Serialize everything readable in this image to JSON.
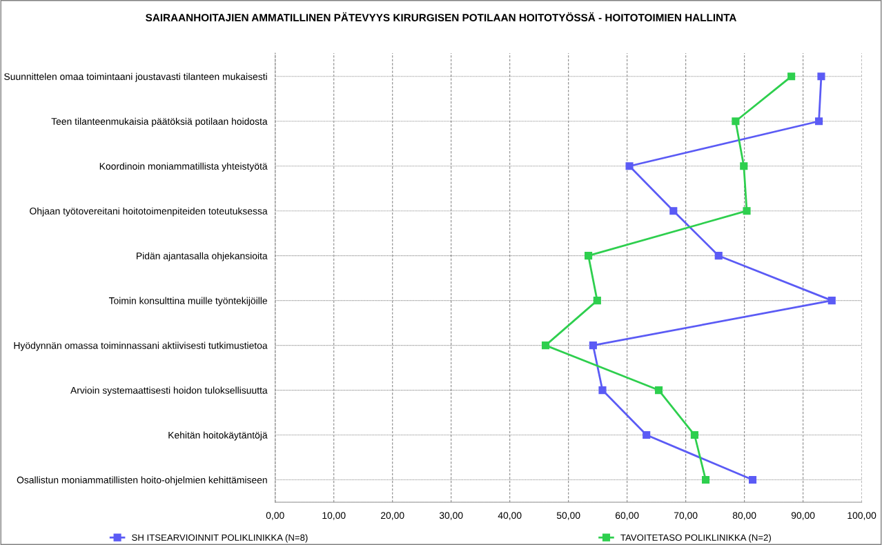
{
  "chart_data": {
    "type": "line",
    "orientation": "horizontal",
    "title": "SAIRAANHOITAJIEN AMMATILLINEN PÄTEVYYS KIRURGISEN POTILAAN HOITOTYÖSSÄ - HOITOTOIMIEN HALLINTA",
    "categories": [
      "Suunnittelen omaa toimintaani joustavasti tilanteen mukaisesti",
      "Teen tilanteenmukaisia päätöksiä potilaan hoidosta",
      "Koordinoin moniammatillista yhteistyötä",
      "Ohjaan työtovereitani hoitotoimenpiteiden toteutuksessa",
      "Pidän ajantasalla ohjekansioita",
      "Toimin konsulttina muille työntekijöille",
      "Hyödynnän omassa toiminnassani aktiivisesti tutkimustietoa",
      "Arvioin systemaattisesti hoidon tuloksellisuutta",
      "Kehitän hoitokäytäntöjä",
      "Osallistun moniammatillisten hoito-ohjelmien kehittämiseen"
    ],
    "series": [
      {
        "name": "SH ITSEARVIOINNIT POLIKLINIKKA (N=8)",
        "color": "#5b5bf5",
        "values": [
          93.1,
          92.7,
          60.4,
          67.9,
          75.6,
          94.9,
          54.2,
          55.8,
          63.3,
          81.4
        ]
      },
      {
        "name": "TAVOITETASO POLIKLINIKKA (N=2)",
        "color": "#2ecf4e",
        "values": [
          88.0,
          78.5,
          79.9,
          80.4,
          53.4,
          54.9,
          46.1,
          65.4,
          71.5,
          73.4
        ]
      }
    ],
    "xlim": [
      0,
      100
    ],
    "xticks": [
      {
        "value": 0,
        "label": "0,00"
      },
      {
        "value": 10,
        "label": "10,00"
      },
      {
        "value": 20,
        "label": "20,00"
      },
      {
        "value": 30,
        "label": "30,00"
      },
      {
        "value": 40,
        "label": "40,00"
      },
      {
        "value": 50,
        "label": "50,00"
      },
      {
        "value": 60,
        "label": "60,00"
      },
      {
        "value": 70,
        "label": "70,00"
      },
      {
        "value": 80,
        "label": "80,00"
      },
      {
        "value": 90,
        "label": "90,00"
      },
      {
        "value": 100,
        "label": "100,00"
      }
    ],
    "grid": true,
    "legend": "bottom",
    "marker": "square",
    "line_style": "solid"
  }
}
